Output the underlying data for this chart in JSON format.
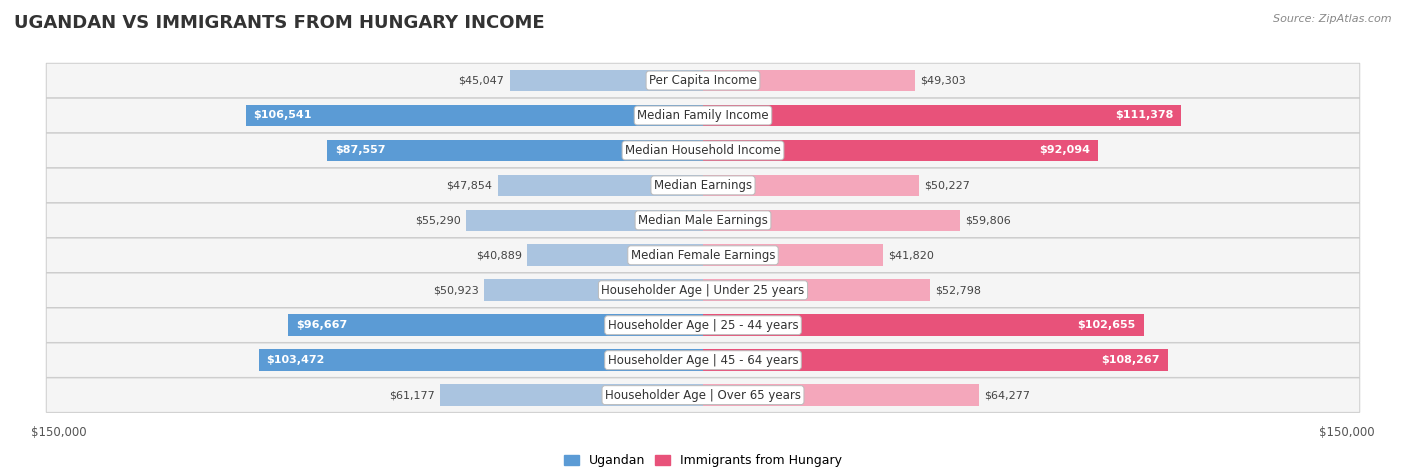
{
  "title": "UGANDAN VS IMMIGRANTS FROM HUNGARY INCOME",
  "source": "Source: ZipAtlas.com",
  "categories": [
    "Per Capita Income",
    "Median Family Income",
    "Median Household Income",
    "Median Earnings",
    "Median Male Earnings",
    "Median Female Earnings",
    "Householder Age | Under 25 years",
    "Householder Age | 25 - 44 years",
    "Householder Age | 45 - 64 years",
    "Householder Age | Over 65 years"
  ],
  "ugandan_values": [
    45047,
    106541,
    87557,
    47854,
    55290,
    40889,
    50923,
    96667,
    103472,
    61177
  ],
  "hungary_values": [
    49303,
    111378,
    92094,
    50227,
    59806,
    41820,
    52798,
    102655,
    108267,
    64277
  ],
  "ugandan_labels": [
    "$45,047",
    "$106,541",
    "$87,557",
    "$47,854",
    "$55,290",
    "$40,889",
    "$50,923",
    "$96,667",
    "$103,472",
    "$61,177"
  ],
  "hungary_labels": [
    "$49,303",
    "$111,378",
    "$92,094",
    "$50,227",
    "$59,806",
    "$41,820",
    "$52,798",
    "$102,655",
    "$108,267",
    "$64,277"
  ],
  "ugandan_color_light": "#aac4e0",
  "ugandan_color_dark": "#5b9bd5",
  "hungary_color_light": "#f4a7bb",
  "hungary_color_dark": "#e8527a",
  "max_value": 150000,
  "bar_height": 0.62,
  "background_color": "#ffffff",
  "label_threshold": 80000,
  "legend_ugandan": "Ugandan",
  "legend_hungary": "Immigrants from Hungary",
  "title_fontsize": 13,
  "label_fontsize": 8.5,
  "value_fontsize": 8.0
}
